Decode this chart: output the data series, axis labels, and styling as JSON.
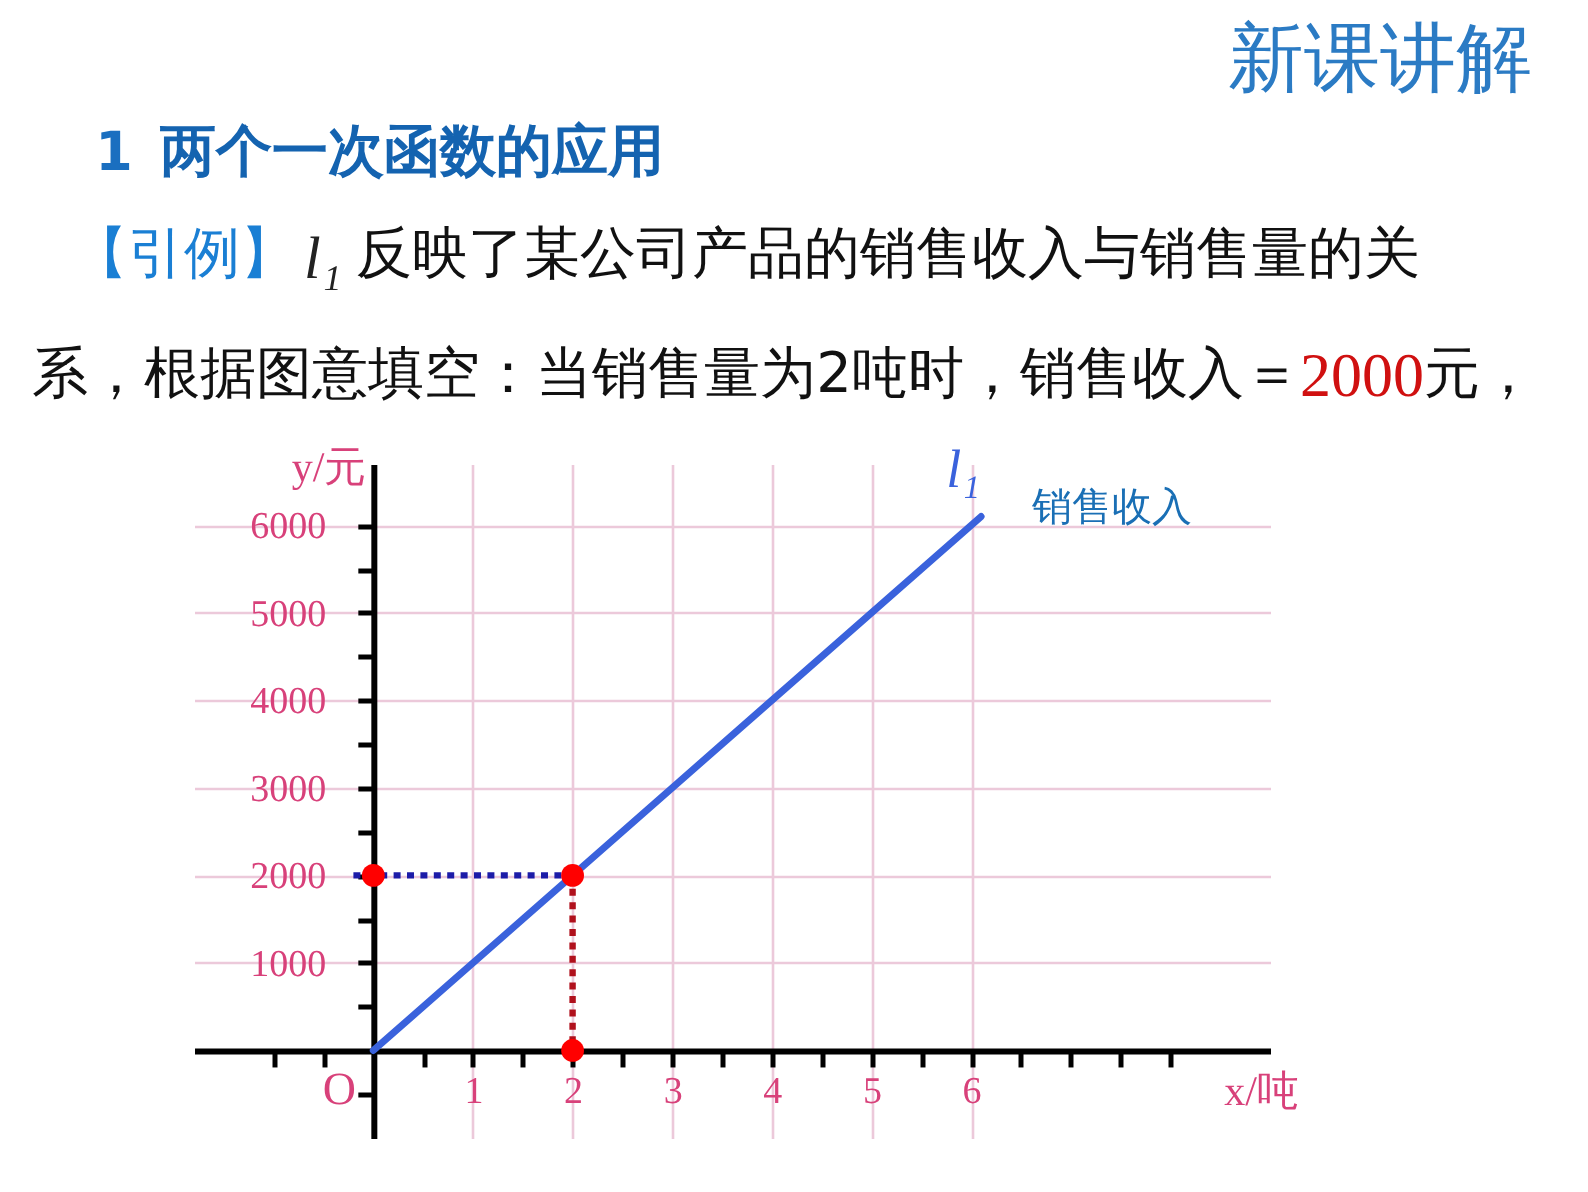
{
  "chart_data": {
    "type": "line",
    "title": "两个一次函数的应用",
    "xlabel": "x/吨",
    "ylabel": "y/元",
    "xlim": [
      -1.8,
      9
    ],
    "ylim": [
      -1000,
      6700
    ],
    "xticks": [
      {
        "value": -1,
        "label": null
      },
      {
        "value": -0.5,
        "label": null
      },
      {
        "value": 0.5,
        "label": null
      },
      1,
      {
        "value": 1.5,
        "label": null
      },
      2,
      {
        "value": 2.5,
        "label": null
      },
      3,
      {
        "value": 3.5,
        "label": null
      },
      4,
      {
        "value": 4.5,
        "label": null
      },
      5,
      {
        "value": 5.5,
        "label": null
      },
      6,
      {
        "value": 6.5,
        "label": null
      },
      {
        "value": 7,
        "label": null
      },
      {
        "value": 7.5,
        "label": null
      },
      {
        "value": 8,
        "label": null
      }
    ],
    "yticks": [
      {
        "value": -500,
        "label": null
      },
      {
        "value": 500,
        "label": null
      },
      1000,
      {
        "value": 1500,
        "label": null
      },
      2000,
      {
        "value": 2500,
        "label": null
      },
      3000,
      {
        "value": 3500,
        "label": null
      },
      4000,
      {
        "value": 4500,
        "label": null
      },
      5000,
      {
        "value": 5500,
        "label": null
      },
      6000
    ],
    "grid": true,
    "series": [
      {
        "name": "l₁",
        "color": "#3a62dc",
        "x": [
          0,
          6.1
        ],
        "values": [
          0,
          6100
        ]
      },
      {
        "type": "line",
        "line_style": "dotted",
        "color": "#1c1ca8",
        "x": [
          -0.2,
          2
        ],
        "values": [
          2000,
          2000
        ]
      },
      {
        "type": "line",
        "line_style": "dotted",
        "color": "#b0101c",
        "x": [
          2,
          2
        ],
        "values": [
          2000,
          0
        ]
      },
      {
        "type": "scatter",
        "marker": "circle",
        "color": "#ff0000",
        "x": [
          0,
          2,
          2
        ],
        "values": [
          2000,
          2000,
          0
        ]
      }
    ],
    "annotations": [
      "新课讲解",
      "1",
      "【引例】",
      "l₁",
      "反映了某公司产品的销售收入与销售量的关",
      "系，根据图意填空：当销售量为2吨时，销售收入＝",
      "2000",
      "元，",
      "销售收入",
      {
        "text": "O",
        "x": 0,
        "y": 0
      }
    ]
  }
}
